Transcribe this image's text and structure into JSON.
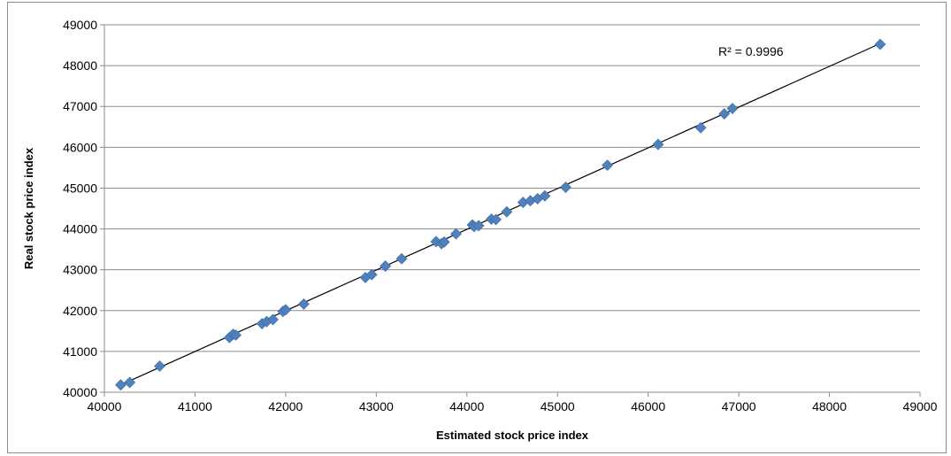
{
  "chart_data": {
    "type": "scatter",
    "title": "",
    "xlabel": "Estimated stock price index",
    "ylabel": "Real stock price index",
    "xlim": [
      40000,
      49000
    ],
    "ylim": [
      40000,
      49000
    ],
    "x_ticks": [
      "40000",
      "41000",
      "42000",
      "43000",
      "44000",
      "45000",
      "46000",
      "47000",
      "48000",
      "49000"
    ],
    "y_ticks": [
      "40000",
      "41000",
      "42000",
      "43000",
      "44000",
      "45000",
      "46000",
      "47000",
      "48000",
      "49000"
    ],
    "grid": "horizontal",
    "legend": "none",
    "marker_color": "#4f81bd",
    "trendline": {
      "type": "linear",
      "from": [
        40180,
        40180
      ],
      "to": [
        48540,
        48520
      ],
      "color": "#000000"
    },
    "annotation": "R² = 0.9996",
    "points": [
      [
        40180,
        40180
      ],
      [
        40280,
        40240
      ],
      [
        40610,
        40640
      ],
      [
        41380,
        41340
      ],
      [
        41420,
        41420
      ],
      [
        41450,
        41400
      ],
      [
        41740,
        41680
      ],
      [
        41790,
        41730
      ],
      [
        41860,
        41780
      ],
      [
        41970,
        41980
      ],
      [
        42000,
        42020
      ],
      [
        42200,
        42160
      ],
      [
        42880,
        42810
      ],
      [
        42950,
        42880
      ],
      [
        43100,
        43090
      ],
      [
        43280,
        43270
      ],
      [
        43660,
        43690
      ],
      [
        43720,
        43640
      ],
      [
        43750,
        43680
      ],
      [
        43880,
        43880
      ],
      [
        44060,
        44100
      ],
      [
        44080,
        44060
      ],
      [
        44130,
        44080
      ],
      [
        44270,
        44240
      ],
      [
        44320,
        44230
      ],
      [
        44440,
        44420
      ],
      [
        44620,
        44650
      ],
      [
        44700,
        44690
      ],
      [
        44780,
        44740
      ],
      [
        44860,
        44810
      ],
      [
        45090,
        45020
      ],
      [
        45550,
        45560
      ],
      [
        46110,
        46070
      ],
      [
        46580,
        46480
      ],
      [
        46840,
        46820
      ],
      [
        46930,
        46950
      ],
      [
        48560,
        48520
      ]
    ]
  }
}
